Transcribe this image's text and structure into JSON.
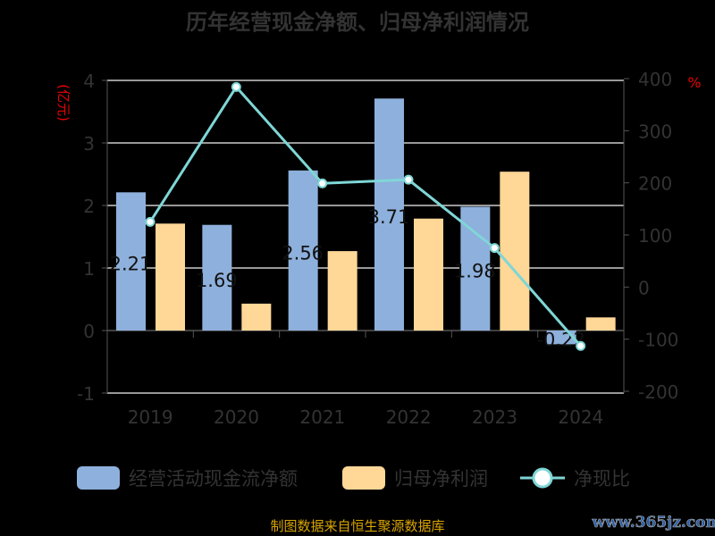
{
  "chart_data": {
    "type": "bar+line",
    "title": "历年经营现金净额、归母净利润情况",
    "categories": [
      "2019",
      "2020",
      "2021",
      "2022",
      "2023",
      "2024"
    ],
    "y_left": {
      "label": "(亿元)",
      "range": [
        -1,
        4
      ],
      "ticks": [
        "-1",
        "0",
        "1",
        "2",
        "3",
        "4"
      ]
    },
    "y_right": {
      "label": "%",
      "range": [
        -200,
        400
      ],
      "ticks": [
        "-200",
        "-100",
        "0",
        "100",
        "200",
        "300",
        "400"
      ]
    },
    "grid": true,
    "legend_position": "bottom",
    "series": [
      {
        "name": "经营活动现金流净额",
        "type": "bar",
        "axis": "left",
        "color": "#8eb0dc",
        "values": [
          2.21,
          1.69,
          2.56,
          3.71,
          1.98,
          -0.22
        ],
        "labels": [
          "2.21",
          "1.69",
          "2.56",
          "3.71",
          "1.98",
          "-0.22"
        ]
      },
      {
        "name": "归母净利润",
        "type": "bar",
        "axis": "left",
        "color": "#ffd797",
        "values": [
          1.71,
          0.43,
          1.27,
          1.79,
          2.54,
          0.21
        ]
      },
      {
        "name": "净现比",
        "type": "line",
        "axis": "right",
        "color": "#7fd6d6",
        "values": [
          125,
          384,
          199,
          206,
          75,
          -113
        ]
      }
    ]
  },
  "footer": {
    "source": "制图数据来自恒生聚源数据库",
    "watermark": "www.365jz.com"
  }
}
